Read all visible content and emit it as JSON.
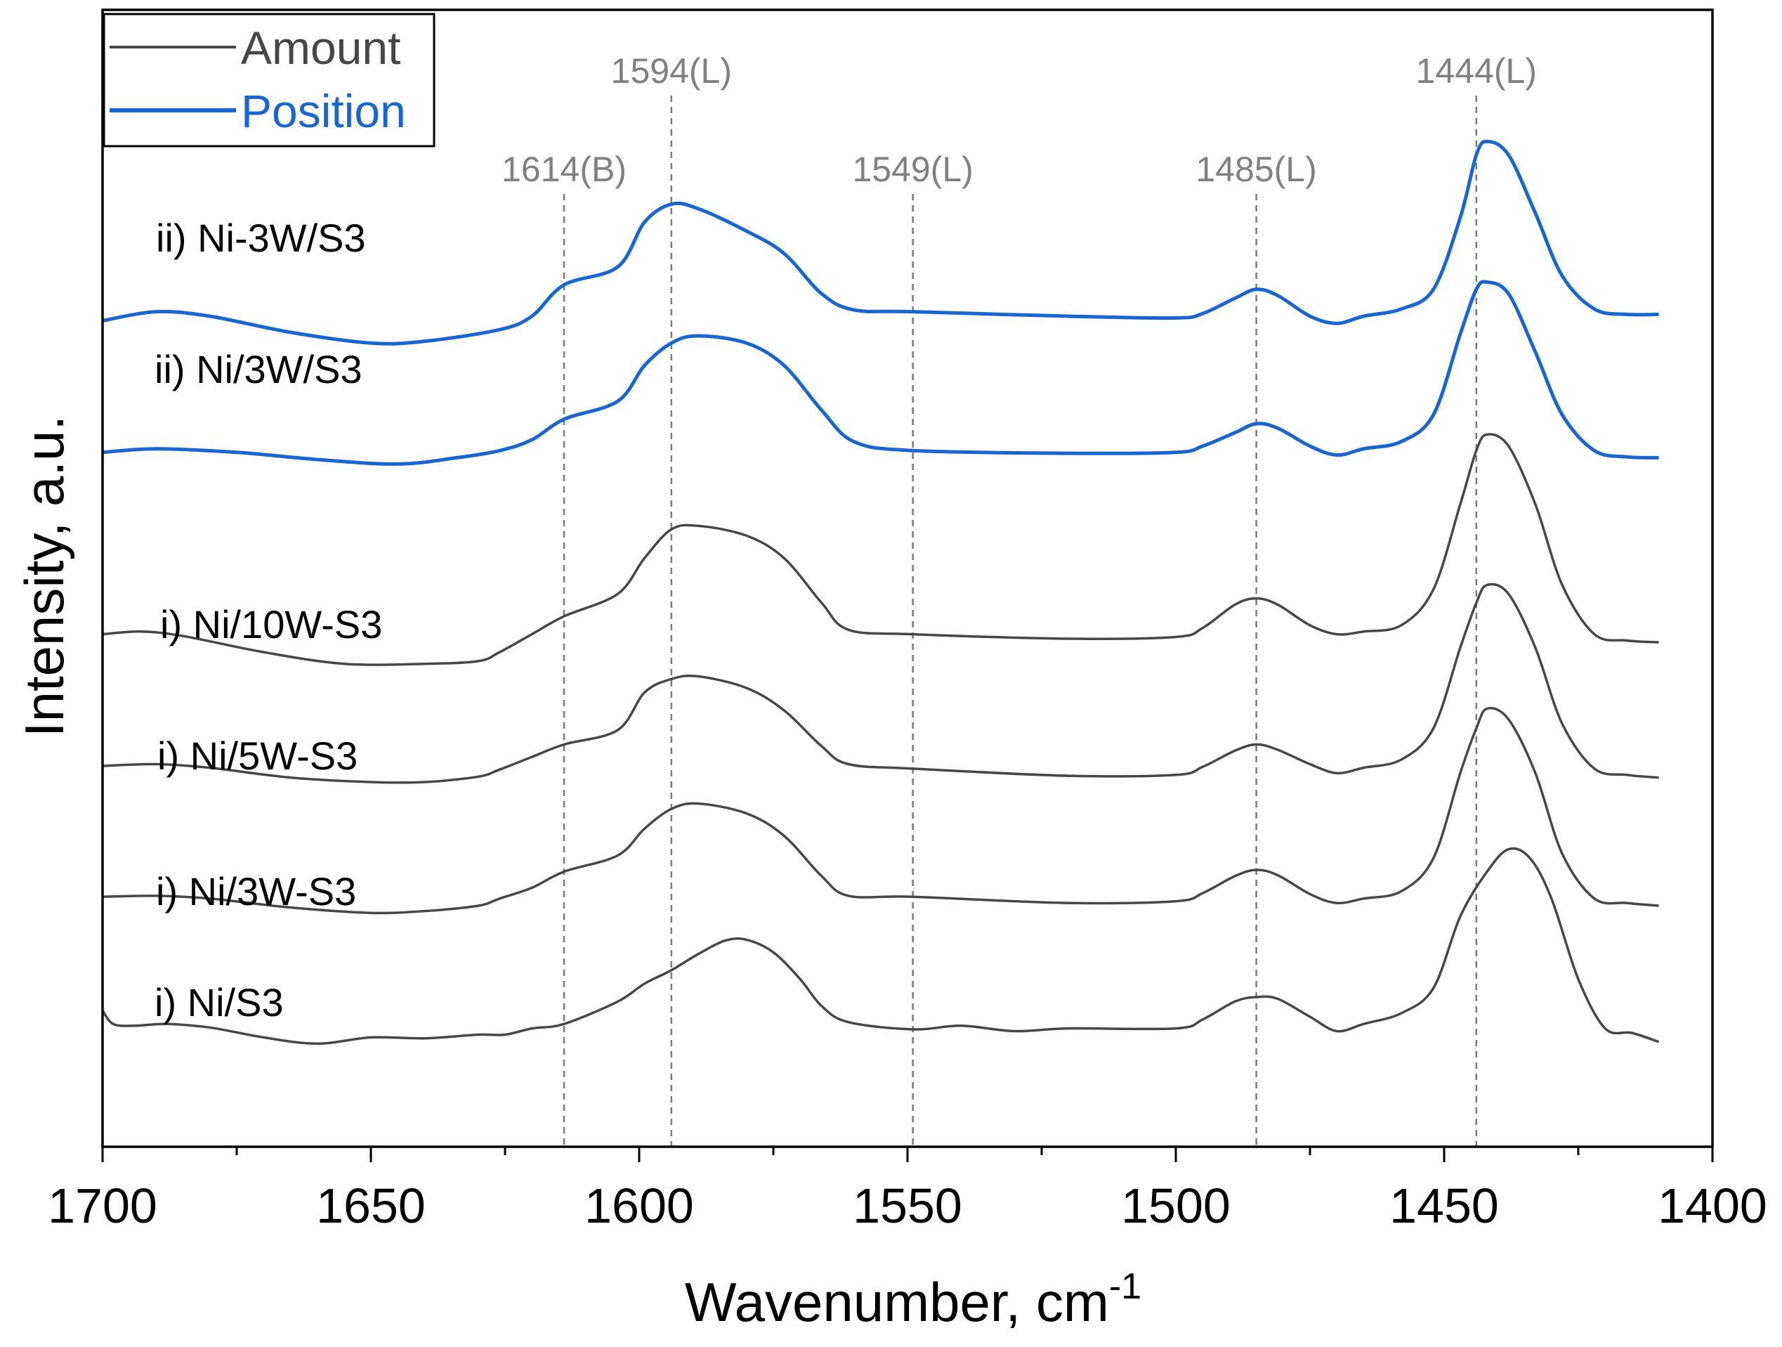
{
  "chart_data": {
    "type": "line",
    "title": "",
    "xlabel": "Wavenumber, cm",
    "xlabel_superscript": "-1",
    "ylabel": "Intensity, a.u.",
    "xlim": [
      1700,
      1400
    ],
    "x_reversed": true,
    "y_ticks_shown": false,
    "grid": false,
    "x_ticks": [
      {
        "value": 1700,
        "label": "1700"
      },
      {
        "value": 1650,
        "label": "1650"
      },
      {
        "value": 1600,
        "label": "1600"
      },
      {
        "value": 1550,
        "label": "1550"
      },
      {
        "value": 1500,
        "label": "1500"
      },
      {
        "value": 1450,
        "label": "1450"
      },
      {
        "value": 1400,
        "label": "1400"
      }
    ],
    "minor_tick_step": 25,
    "legend": {
      "placement": "top-left",
      "entries": [
        {
          "label": "Amount",
          "color": "#474747"
        },
        {
          "label": "Position",
          "color": "#1a66d0"
        }
      ]
    },
    "reference_lines": [
      {
        "x": 1614,
        "label": "1614(B)"
      },
      {
        "x": 1594,
        "label": "1594(L)"
      },
      {
        "x": 1549,
        "label": "1549(L)"
      },
      {
        "x": 1485,
        "label": "1485(L)"
      },
      {
        "x": 1444,
        "label": "1444(L)"
      }
    ],
    "series": [
      {
        "name": "ii) Ni-3W/S3",
        "group": "Position",
        "color": "#1a66d0",
        "baseline": 0.8,
        "points": [
          [
            1700,
            0.795
          ],
          [
            1690,
            0.805
          ],
          [
            1680,
            0.8
          ],
          [
            1665,
            0.782
          ],
          [
            1650,
            0.77
          ],
          [
            1640,
            0.772
          ],
          [
            1626,
            0.785
          ],
          [
            1620,
            0.8
          ],
          [
            1614,
            0.835
          ],
          [
            1604,
            0.855
          ],
          [
            1599,
            0.905
          ],
          [
            1594,
            0.925
          ],
          [
            1589,
            0.92
          ],
          [
            1580,
            0.895
          ],
          [
            1573,
            0.87
          ],
          [
            1566,
            0.825
          ],
          [
            1560,
            0.807
          ],
          [
            1549,
            0.805
          ],
          [
            1520,
            0.8
          ],
          [
            1500,
            0.798
          ],
          [
            1495,
            0.803
          ],
          [
            1489,
            0.82
          ],
          [
            1485,
            0.83
          ],
          [
            1481,
            0.823
          ],
          [
            1475,
            0.8
          ],
          [
            1470,
            0.792
          ],
          [
            1465,
            0.8
          ],
          [
            1458,
            0.808
          ],
          [
            1452,
            0.83
          ],
          [
            1447,
            0.91
          ],
          [
            1444,
            0.98
          ],
          [
            1442,
            0.995
          ],
          [
            1438,
            0.98
          ],
          [
            1433,
            0.915
          ],
          [
            1428,
            0.845
          ],
          [
            1422,
            0.808
          ],
          [
            1416,
            0.802
          ],
          [
            1410,
            0.802
          ]
        ]
      },
      {
        "name": "ii) Ni/3W/S3",
        "group": "Position",
        "color": "#1a66d0",
        "baseline": 0.63,
        "points": [
          [
            1700,
            0.648
          ],
          [
            1690,
            0.652
          ],
          [
            1675,
            0.648
          ],
          [
            1660,
            0.64
          ],
          [
            1645,
            0.635
          ],
          [
            1634,
            0.642
          ],
          [
            1626,
            0.65
          ],
          [
            1620,
            0.662
          ],
          [
            1614,
            0.685
          ],
          [
            1604,
            0.705
          ],
          [
            1599,
            0.745
          ],
          [
            1594,
            0.77
          ],
          [
            1589,
            0.778
          ],
          [
            1580,
            0.77
          ],
          [
            1573,
            0.745
          ],
          [
            1566,
            0.695
          ],
          [
            1560,
            0.66
          ],
          [
            1549,
            0.65
          ],
          [
            1520,
            0.647
          ],
          [
            1500,
            0.648
          ],
          [
            1495,
            0.655
          ],
          [
            1489,
            0.67
          ],
          [
            1485,
            0.68
          ],
          [
            1481,
            0.675
          ],
          [
            1475,
            0.655
          ],
          [
            1470,
            0.645
          ],
          [
            1465,
            0.652
          ],
          [
            1458,
            0.66
          ],
          [
            1452,
            0.69
          ],
          [
            1447,
            0.78
          ],
          [
            1444,
            0.83
          ],
          [
            1442,
            0.838
          ],
          [
            1438,
            0.825
          ],
          [
            1433,
            0.76
          ],
          [
            1428,
            0.69
          ],
          [
            1422,
            0.65
          ],
          [
            1416,
            0.643
          ],
          [
            1410,
            0.642
          ]
        ]
      },
      {
        "name": "i) Ni/10W-S3",
        "group": "Amount",
        "color": "#474747",
        "baseline": 0.43,
        "points": [
          [
            1700,
            0.445
          ],
          [
            1693,
            0.448
          ],
          [
            1685,
            0.443
          ],
          [
            1670,
            0.425
          ],
          [
            1655,
            0.412
          ],
          [
            1640,
            0.412
          ],
          [
            1630,
            0.415
          ],
          [
            1626,
            0.425
          ],
          [
            1620,
            0.445
          ],
          [
            1614,
            0.465
          ],
          [
            1604,
            0.49
          ],
          [
            1599,
            0.53
          ],
          [
            1594,
            0.562
          ],
          [
            1589,
            0.566
          ],
          [
            1580,
            0.555
          ],
          [
            1573,
            0.53
          ],
          [
            1566,
            0.48
          ],
          [
            1561,
            0.45
          ],
          [
            1549,
            0.445
          ],
          [
            1520,
            0.44
          ],
          [
            1500,
            0.442
          ],
          [
            1495,
            0.452
          ],
          [
            1489,
            0.478
          ],
          [
            1485,
            0.485
          ],
          [
            1481,
            0.478
          ],
          [
            1475,
            0.455
          ],
          [
            1470,
            0.445
          ],
          [
            1465,
            0.448
          ],
          [
            1458,
            0.455
          ],
          [
            1452,
            0.495
          ],
          [
            1447,
            0.59
          ],
          [
            1444,
            0.65
          ],
          [
            1442,
            0.668
          ],
          [
            1438,
            0.655
          ],
          [
            1433,
            0.59
          ],
          [
            1428,
            0.5
          ],
          [
            1422,
            0.445
          ],
          [
            1416,
            0.438
          ],
          [
            1410,
            0.436
          ]
        ]
      },
      {
        "name": "i) Ni/5W-S3",
        "group": "Amount",
        "color": "#474747",
        "baseline": 0.28,
        "points": [
          [
            1700,
            0.298
          ],
          [
            1690,
            0.3
          ],
          [
            1680,
            0.296
          ],
          [
            1665,
            0.285
          ],
          [
            1650,
            0.28
          ],
          [
            1640,
            0.28
          ],
          [
            1630,
            0.286
          ],
          [
            1626,
            0.294
          ],
          [
            1620,
            0.308
          ],
          [
            1614,
            0.322
          ],
          [
            1604,
            0.338
          ],
          [
            1599,
            0.38
          ],
          [
            1594,
            0.395
          ],
          [
            1589,
            0.398
          ],
          [
            1580,
            0.385
          ],
          [
            1573,
            0.36
          ],
          [
            1566,
            0.32
          ],
          [
            1561,
            0.3
          ],
          [
            1549,
            0.295
          ],
          [
            1520,
            0.287
          ],
          [
            1500,
            0.288
          ],
          [
            1495,
            0.297
          ],
          [
            1489,
            0.315
          ],
          [
            1485,
            0.322
          ],
          [
            1481,
            0.316
          ],
          [
            1475,
            0.3
          ],
          [
            1470,
            0.29
          ],
          [
            1465,
            0.296
          ],
          [
            1458,
            0.305
          ],
          [
            1452,
            0.34
          ],
          [
            1447,
            0.43
          ],
          [
            1444,
            0.48
          ],
          [
            1442,
            0.5
          ],
          [
            1438,
            0.49
          ],
          [
            1433,
            0.43
          ],
          [
            1428,
            0.345
          ],
          [
            1422,
            0.295
          ],
          [
            1416,
            0.288
          ],
          [
            1410,
            0.285
          ]
        ]
      },
      {
        "name": "i) Ni/3W-S3",
        "group": "Amount",
        "color": "#474747",
        "baseline": 0.14,
        "points": [
          [
            1700,
            0.152
          ],
          [
            1690,
            0.153
          ],
          [
            1680,
            0.15
          ],
          [
            1665,
            0.14
          ],
          [
            1650,
            0.134
          ],
          [
            1640,
            0.136
          ],
          [
            1630,
            0.142
          ],
          [
            1626,
            0.15
          ],
          [
            1620,
            0.162
          ],
          [
            1614,
            0.18
          ],
          [
            1604,
            0.198
          ],
          [
            1599,
            0.228
          ],
          [
            1594,
            0.25
          ],
          [
            1589,
            0.256
          ],
          [
            1580,
            0.245
          ],
          [
            1573,
            0.22
          ],
          [
            1566,
            0.175
          ],
          [
            1561,
            0.153
          ],
          [
            1549,
            0.152
          ],
          [
            1520,
            0.145
          ],
          [
            1500,
            0.147
          ],
          [
            1495,
            0.156
          ],
          [
            1489,
            0.175
          ],
          [
            1485,
            0.182
          ],
          [
            1481,
            0.176
          ],
          [
            1475,
            0.155
          ],
          [
            1470,
            0.145
          ],
          [
            1465,
            0.15
          ],
          [
            1458,
            0.158
          ],
          [
            1452,
            0.195
          ],
          [
            1447,
            0.29
          ],
          [
            1444,
            0.34
          ],
          [
            1442,
            0.362
          ],
          [
            1438,
            0.35
          ],
          [
            1433,
            0.29
          ],
          [
            1428,
            0.2
          ],
          [
            1422,
            0.15
          ],
          [
            1416,
            0.145
          ],
          [
            1410,
            0.142
          ]
        ]
      },
      {
        "name": "i) Ni/S3",
        "group": "Amount",
        "color": "#474747",
        "baseline": 0.0,
        "points": [
          [
            1700,
            0.025
          ],
          [
            1698,
            0.01
          ],
          [
            1694,
            0.008
          ],
          [
            1688,
            0.01
          ],
          [
            1680,
            0.006
          ],
          [
            1670,
            -0.005
          ],
          [
            1660,
            -0.012
          ],
          [
            1650,
            -0.005
          ],
          [
            1640,
            -0.006
          ],
          [
            1630,
            -0.002
          ],
          [
            1625,
            -0.002
          ],
          [
            1620,
            0.005
          ],
          [
            1614,
            0.01
          ],
          [
            1604,
            0.035
          ],
          [
            1599,
            0.055
          ],
          [
            1594,
            0.07
          ],
          [
            1589,
            0.088
          ],
          [
            1584,
            0.103
          ],
          [
            1580,
            0.104
          ],
          [
            1575,
            0.09
          ],
          [
            1570,
            0.06
          ],
          [
            1566,
            0.03
          ],
          [
            1561,
            0.012
          ],
          [
            1549,
            0.004
          ],
          [
            1540,
            0.008
          ],
          [
            1530,
            0.002
          ],
          [
            1520,
            0.005
          ],
          [
            1500,
            0.005
          ],
          [
            1495,
            0.015
          ],
          [
            1489,
            0.035
          ],
          [
            1485,
            0.04
          ],
          [
            1481,
            0.038
          ],
          [
            1475,
            0.018
          ],
          [
            1470,
            0.002
          ],
          [
            1465,
            0.01
          ],
          [
            1458,
            0.022
          ],
          [
            1452,
            0.05
          ],
          [
            1447,
            0.13
          ],
          [
            1442,
            0.18
          ],
          [
            1438,
            0.205
          ],
          [
            1434,
            0.195
          ],
          [
            1430,
            0.15
          ],
          [
            1425,
            0.06
          ],
          [
            1420,
            0.005
          ],
          [
            1415,
            0.0
          ],
          [
            1410,
            -0.01
          ]
        ]
      }
    ]
  }
}
